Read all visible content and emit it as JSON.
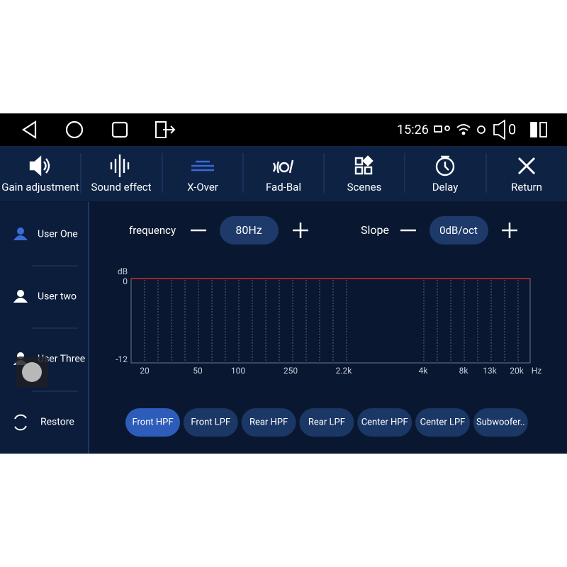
{
  "status_bar": {
    "time": "15:26",
    "volume": "0"
  },
  "tabs": [
    "Gain adjustment",
    "Sound effect",
    "X-Over",
    "Fad-Bal",
    "Scenes",
    "Delay",
    "Return"
  ],
  "sidebar": [
    "User One",
    "User two",
    "User Three",
    "Restore"
  ],
  "controls": {
    "frequency_label": "frequency",
    "frequency_value": "80Hz",
    "slope_label": "Slope",
    "slope_value": "0dB/oct"
  },
  "graph": {
    "y_unit": "dB",
    "y_labels": [
      "0",
      "-12"
    ],
    "x_labels": [
      "20",
      "50",
      "100",
      "250",
      "2.2k",
      "4k",
      "8k",
      "13k",
      "20k"
    ],
    "x_unit": "Hz"
  },
  "channels": [
    "Front HPF",
    "Front LPF",
    "Rear HPF",
    "Rear LPF",
    "Center HPF",
    "Center LPF",
    "Subwoofer.."
  ]
}
